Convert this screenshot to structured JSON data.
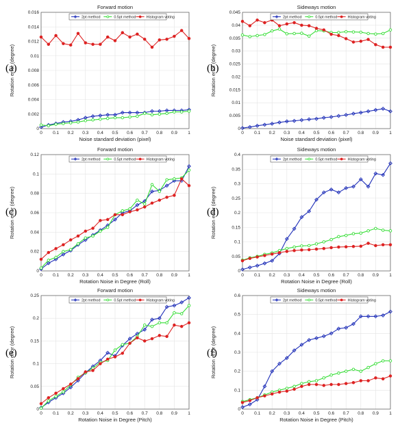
{
  "panels": [
    {
      "label": "(a)",
      "chart_data": {
        "type": "line",
        "title": "Forward motion",
        "xlabel": "Noise standard deviation (pixel)",
        "ylabel": "Rotation error (degree)",
        "xlim": [
          0,
          1
        ],
        "ylim": [
          0,
          0.016
        ],
        "xticks": [
          "0",
          "0.1",
          "0.2",
          "0.3",
          "0.4",
          "0.5",
          "0.6",
          "0.7",
          "0.8",
          "0.9",
          "1"
        ],
        "yticks": [
          "0",
          "0.002",
          "0.004",
          "0.006",
          "0.008",
          "0.01",
          "0.012",
          "0.014",
          "0.016"
        ],
        "grid": true,
        "legend_position": "top",
        "x": [
          0,
          0.05,
          0.1,
          0.15,
          0.2,
          0.25,
          0.3,
          0.35,
          0.4,
          0.45,
          0.5,
          0.55,
          0.6,
          0.65,
          0.7,
          0.75,
          0.8,
          0.85,
          0.9,
          0.95,
          1
        ],
        "series": [
          {
            "name": "2pt method",
            "color": "#1f2fb8",
            "marker": "diamond",
            "values": [
              0.0002,
              0.0005,
              0.0007,
              0.0009,
              0.001,
              0.0012,
              0.0015,
              0.0017,
              0.0018,
              0.0019,
              0.0019,
              0.0022,
              0.0022,
              0.0022,
              0.0022,
              0.0024,
              0.0024,
              0.0025,
              0.0025,
              0.0025,
              0.0026
            ]
          },
          {
            "name": "0.5pt method",
            "color": "#33dd33",
            "marker": "circle",
            "values": [
              0.0005,
              0.0004,
              0.0006,
              0.0007,
              0.0008,
              0.0009,
              0.0011,
              0.0012,
              0.0013,
              0.0014,
              0.0015,
              0.0015,
              0.0016,
              0.0017,
              0.0021,
              0.0019,
              0.002,
              0.0021,
              0.0023,
              0.0023,
              0.0024
            ]
          },
          {
            "name": "Histogram voting",
            "color": "#dd2222",
            "marker": "circle",
            "values": [
              0.0126,
              0.0116,
              0.0128,
              0.0117,
              0.0115,
              0.0131,
              0.0118,
              0.0116,
              0.0116,
              0.0126,
              0.0121,
              0.0132,
              0.0126,
              0.013,
              0.0123,
              0.0112,
              0.0122,
              0.0123,
              0.0127,
              0.0135,
              0.0124
            ]
          }
        ]
      }
    },
    {
      "label": "(b)",
      "chart_data": {
        "type": "line",
        "title": "Sideways motion",
        "xlabel": "Noise standard deviation (pixel)",
        "ylabel": "Rotation error (degree)",
        "xlim": [
          0,
          1
        ],
        "ylim": [
          0,
          0.045
        ],
        "xticks": [
          "0",
          "0.1",
          "0.2",
          "0.3",
          "0.4",
          "0.5",
          "0.6",
          "0.7",
          "0.8",
          "0.9",
          "1"
        ],
        "yticks": [
          "0",
          "0.005",
          "0.01",
          "0.015",
          "0.02",
          "0.025",
          "0.03",
          "0.035",
          "0.04",
          "0.045"
        ],
        "grid": true,
        "legend_position": "top",
        "x": [
          0,
          0.05,
          0.1,
          0.15,
          0.2,
          0.25,
          0.3,
          0.35,
          0.4,
          0.45,
          0.5,
          0.55,
          0.6,
          0.65,
          0.7,
          0.75,
          0.8,
          0.85,
          0.9,
          0.95,
          1
        ],
        "series": [
          {
            "name": "2pt method",
            "color": "#1f2fb8",
            "marker": "diamond",
            "values": [
              0.0002,
              0.0006,
              0.0011,
              0.0015,
              0.0019,
              0.0024,
              0.0028,
              0.003,
              0.0033,
              0.0036,
              0.0038,
              0.0042,
              0.0045,
              0.0049,
              0.0053,
              0.0058,
              0.0062,
              0.0067,
              0.0072,
              0.0077,
              0.0067
            ]
          },
          {
            "name": "0.5pt method",
            "color": "#33dd33",
            "marker": "circle",
            "values": [
              0.0362,
              0.0356,
              0.036,
              0.0364,
              0.0378,
              0.0385,
              0.0367,
              0.0368,
              0.0369,
              0.0358,
              0.0379,
              0.0378,
              0.0372,
              0.0372,
              0.0375,
              0.0374,
              0.0373,
              0.0368,
              0.0366,
              0.0368,
              0.0382
            ]
          },
          {
            "name": "Histogram voting",
            "color": "#dd2222",
            "marker": "circle",
            "values": [
              0.0415,
              0.0398,
              0.042,
              0.041,
              0.042,
              0.0398,
              0.0405,
              0.041,
              0.04,
              0.0398,
              0.0388,
              0.0382,
              0.0365,
              0.036,
              0.0348,
              0.0335,
              0.0338,
              0.0345,
              0.0325,
              0.0315,
              0.0315
            ]
          }
        ]
      }
    },
    {
      "label": "(c)",
      "chart_data": {
        "type": "line",
        "title": "Forward motion",
        "xlabel": "Rotation Noise in Degree (Roll)",
        "ylabel": "Rotation error (degree)",
        "xlim": [
          0,
          1
        ],
        "ylim": [
          0,
          0.12
        ],
        "xticks": [
          "0",
          "0.1",
          "0.2",
          "0.3",
          "0.4",
          "0.5",
          "0.6",
          "0.7",
          "0.8",
          "0.9",
          "1"
        ],
        "yticks": [
          "0",
          "0.02",
          "0.04",
          "0.06",
          "0.08",
          "0.1",
          "0.12"
        ],
        "grid": true,
        "legend_position": "top",
        "x": [
          0,
          0.05,
          0.1,
          0.15,
          0.2,
          0.25,
          0.3,
          0.35,
          0.4,
          0.45,
          0.5,
          0.55,
          0.6,
          0.65,
          0.7,
          0.75,
          0.8,
          0.85,
          0.9,
          0.95,
          1
        ],
        "series": [
          {
            "name": "2pt method",
            "color": "#1f2fb8",
            "marker": "diamond",
            "values": [
              0.002,
              0.008,
              0.012,
              0.017,
              0.021,
              0.027,
              0.032,
              0.037,
              0.042,
              0.047,
              0.053,
              0.06,
              0.062,
              0.068,
              0.072,
              0.082,
              0.083,
              0.088,
              0.093,
              0.093,
              0.108
            ]
          },
          {
            "name": "0.5pt method",
            "color": "#33dd33",
            "marker": "circle",
            "values": [
              0.003,
              0.011,
              0.014,
              0.02,
              0.022,
              0.028,
              0.034,
              0.036,
              0.041,
              0.045,
              0.058,
              0.062,
              0.064,
              0.073,
              0.069,
              0.089,
              0.082,
              0.094,
              0.095,
              0.096,
              0.104
            ]
          },
          {
            "name": "Histogram voting",
            "color": "#dd2222",
            "marker": "circle",
            "values": [
              0.012,
              0.019,
              0.023,
              0.027,
              0.032,
              0.036,
              0.041,
              0.044,
              0.052,
              0.053,
              0.058,
              0.058,
              0.061,
              0.063,
              0.066,
              0.07,
              0.073,
              0.076,
              0.078,
              0.095,
              0.088
            ]
          }
        ]
      }
    },
    {
      "label": "(d)",
      "chart_data": {
        "type": "line",
        "title": "Sideways motion",
        "xlabel": "Rotation Noise in Degree (Roll)",
        "ylabel": "Rotation error (degree)",
        "xlim": [
          0,
          1
        ],
        "ylim": [
          0,
          0.4
        ],
        "xticks": [
          "0",
          "0.1",
          "0.2",
          "0.3",
          "0.4",
          "0.5",
          "0.6",
          "0.7",
          "0.8",
          "0.9",
          "1"
        ],
        "yticks": [
          "0",
          "0.05",
          "0.1",
          "0.15",
          "0.2",
          "0.25",
          "0.3",
          "0.35",
          "0.4"
        ],
        "grid": true,
        "legend_position": "top",
        "x": [
          0,
          0.05,
          0.1,
          0.15,
          0.2,
          0.25,
          0.3,
          0.35,
          0.4,
          0.45,
          0.5,
          0.55,
          0.6,
          0.65,
          0.7,
          0.75,
          0.8,
          0.85,
          0.9,
          0.95,
          1
        ],
        "series": [
          {
            "name": "2pt method",
            "color": "#1f2fb8",
            "marker": "diamond",
            "values": [
              0.005,
              0.012,
              0.018,
              0.026,
              0.035,
              0.06,
              0.11,
              0.145,
              0.185,
              0.205,
              0.245,
              0.27,
              0.28,
              0.27,
              0.285,
              0.29,
              0.315,
              0.29,
              0.335,
              0.33,
              0.37
            ]
          },
          {
            "name": "0.5pt method",
            "color": "#33dd33",
            "marker": "circle",
            "values": [
              0.037,
              0.045,
              0.05,
              0.057,
              0.062,
              0.07,
              0.077,
              0.082,
              0.086,
              0.087,
              0.093,
              0.1,
              0.108,
              0.118,
              0.122,
              0.128,
              0.13,
              0.138,
              0.146,
              0.14,
              0.138
            ]
          },
          {
            "name": "Histogram voting",
            "color": "#dd2222",
            "marker": "circle",
            "values": [
              0.035,
              0.043,
              0.048,
              0.053,
              0.058,
              0.063,
              0.067,
              0.07,
              0.072,
              0.073,
              0.075,
              0.077,
              0.08,
              0.082,
              0.083,
              0.084,
              0.085,
              0.095,
              0.087,
              0.09,
              0.09
            ]
          }
        ]
      }
    },
    {
      "label": "(e)",
      "chart_data": {
        "type": "line",
        "title": "Forward motion",
        "xlabel": "Rotation Noise in Degree (Pitch)",
        "ylabel": "Rotation error (degree)",
        "xlim": [
          0,
          1
        ],
        "ylim": [
          0,
          0.25
        ],
        "xticks": [
          "0",
          "0.1",
          "0.2",
          "0.3",
          "0.4",
          "0.5",
          "0.6",
          "0.7",
          "0.8",
          "0.9",
          "1"
        ],
        "yticks": [
          "0",
          "0.05",
          "0.1",
          "0.15",
          "0.2",
          "0.25"
        ],
        "grid": true,
        "legend_position": "top",
        "x": [
          0,
          0.05,
          0.1,
          0.15,
          0.2,
          0.25,
          0.3,
          0.35,
          0.4,
          0.45,
          0.5,
          0.55,
          0.6,
          0.65,
          0.7,
          0.75,
          0.8,
          0.85,
          0.9,
          0.95,
          1
        ],
        "series": [
          {
            "name": "2pt method",
            "color": "#1f2fb8",
            "marker": "diamond",
            "values": [
              0.003,
              0.015,
              0.025,
              0.035,
              0.048,
              0.063,
              0.08,
              0.094,
              0.107,
              0.124,
              0.117,
              0.14,
              0.155,
              0.166,
              0.175,
              0.197,
              0.2,
              0.225,
              0.228,
              0.235,
              0.245
            ]
          },
          {
            "name": "0.5pt method",
            "color": "#33dd33",
            "marker": "circle",
            "values": [
              0.002,
              0.018,
              0.028,
              0.038,
              0.053,
              0.07,
              0.08,
              0.09,
              0.103,
              0.107,
              0.13,
              0.142,
              0.145,
              0.16,
              0.185,
              0.182,
              0.19,
              0.19,
              0.212,
              0.21,
              0.228
            ]
          },
          {
            "name": "Histogram voting",
            "color": "#dd2222",
            "marker": "circle",
            "values": [
              0.012,
              0.025,
              0.035,
              0.045,
              0.055,
              0.067,
              0.082,
              0.085,
              0.1,
              0.11,
              0.115,
              0.123,
              0.145,
              0.157,
              0.15,
              0.155,
              0.162,
              0.16,
              0.185,
              0.182,
              0.19
            ]
          }
        ]
      }
    },
    {
      "label": "(f)",
      "chart_data": {
        "type": "line",
        "title": "Sideways motion",
        "xlabel": "Rotation Noise in Degree (Pitch)",
        "ylabel": "Rotation error (degree)",
        "xlim": [
          0,
          1
        ],
        "ylim": [
          0,
          0.6
        ],
        "xticks": [
          "0",
          "0.1",
          "0.2",
          "0.3",
          "0.4",
          "0.5",
          "0.6",
          "0.7",
          "0.8",
          "0.9",
          "1"
        ],
        "yticks": [
          "0",
          "0.1",
          "0.2",
          "0.3",
          "0.4",
          "0.5",
          "0.6"
        ],
        "grid": true,
        "legend_position": "top",
        "x": [
          0,
          0.05,
          0.1,
          0.15,
          0.2,
          0.25,
          0.3,
          0.35,
          0.4,
          0.45,
          0.5,
          0.55,
          0.6,
          0.65,
          0.7,
          0.75,
          0.8,
          0.85,
          0.9,
          0.95,
          1
        ],
        "series": [
          {
            "name": "2pt method",
            "color": "#1f2fb8",
            "marker": "diamond",
            "values": [
              0.01,
              0.025,
              0.05,
              0.12,
              0.2,
              0.24,
              0.27,
              0.31,
              0.34,
              0.365,
              0.375,
              0.385,
              0.4,
              0.425,
              0.43,
              0.45,
              0.49,
              0.49,
              0.49,
              0.495,
              0.515
            ]
          },
          {
            "name": "0.5pt method",
            "color": "#33dd33",
            "marker": "circle",
            "values": [
              0.04,
              0.05,
              0.06,
              0.075,
              0.09,
              0.1,
              0.11,
              0.12,
              0.135,
              0.145,
              0.15,
              0.165,
              0.18,
              0.19,
              0.2,
              0.21,
              0.2,
              0.22,
              0.24,
              0.255,
              0.255
            ]
          },
          {
            "name": "Histogram voting",
            "color": "#dd2222",
            "marker": "circle",
            "values": [
              0.035,
              0.045,
              0.06,
              0.07,
              0.08,
              0.09,
              0.095,
              0.105,
              0.12,
              0.13,
              0.13,
              0.125,
              0.13,
              0.13,
              0.135,
              0.14,
              0.15,
              0.15,
              0.165,
              0.16,
              0.175
            ]
          }
        ]
      }
    }
  ]
}
